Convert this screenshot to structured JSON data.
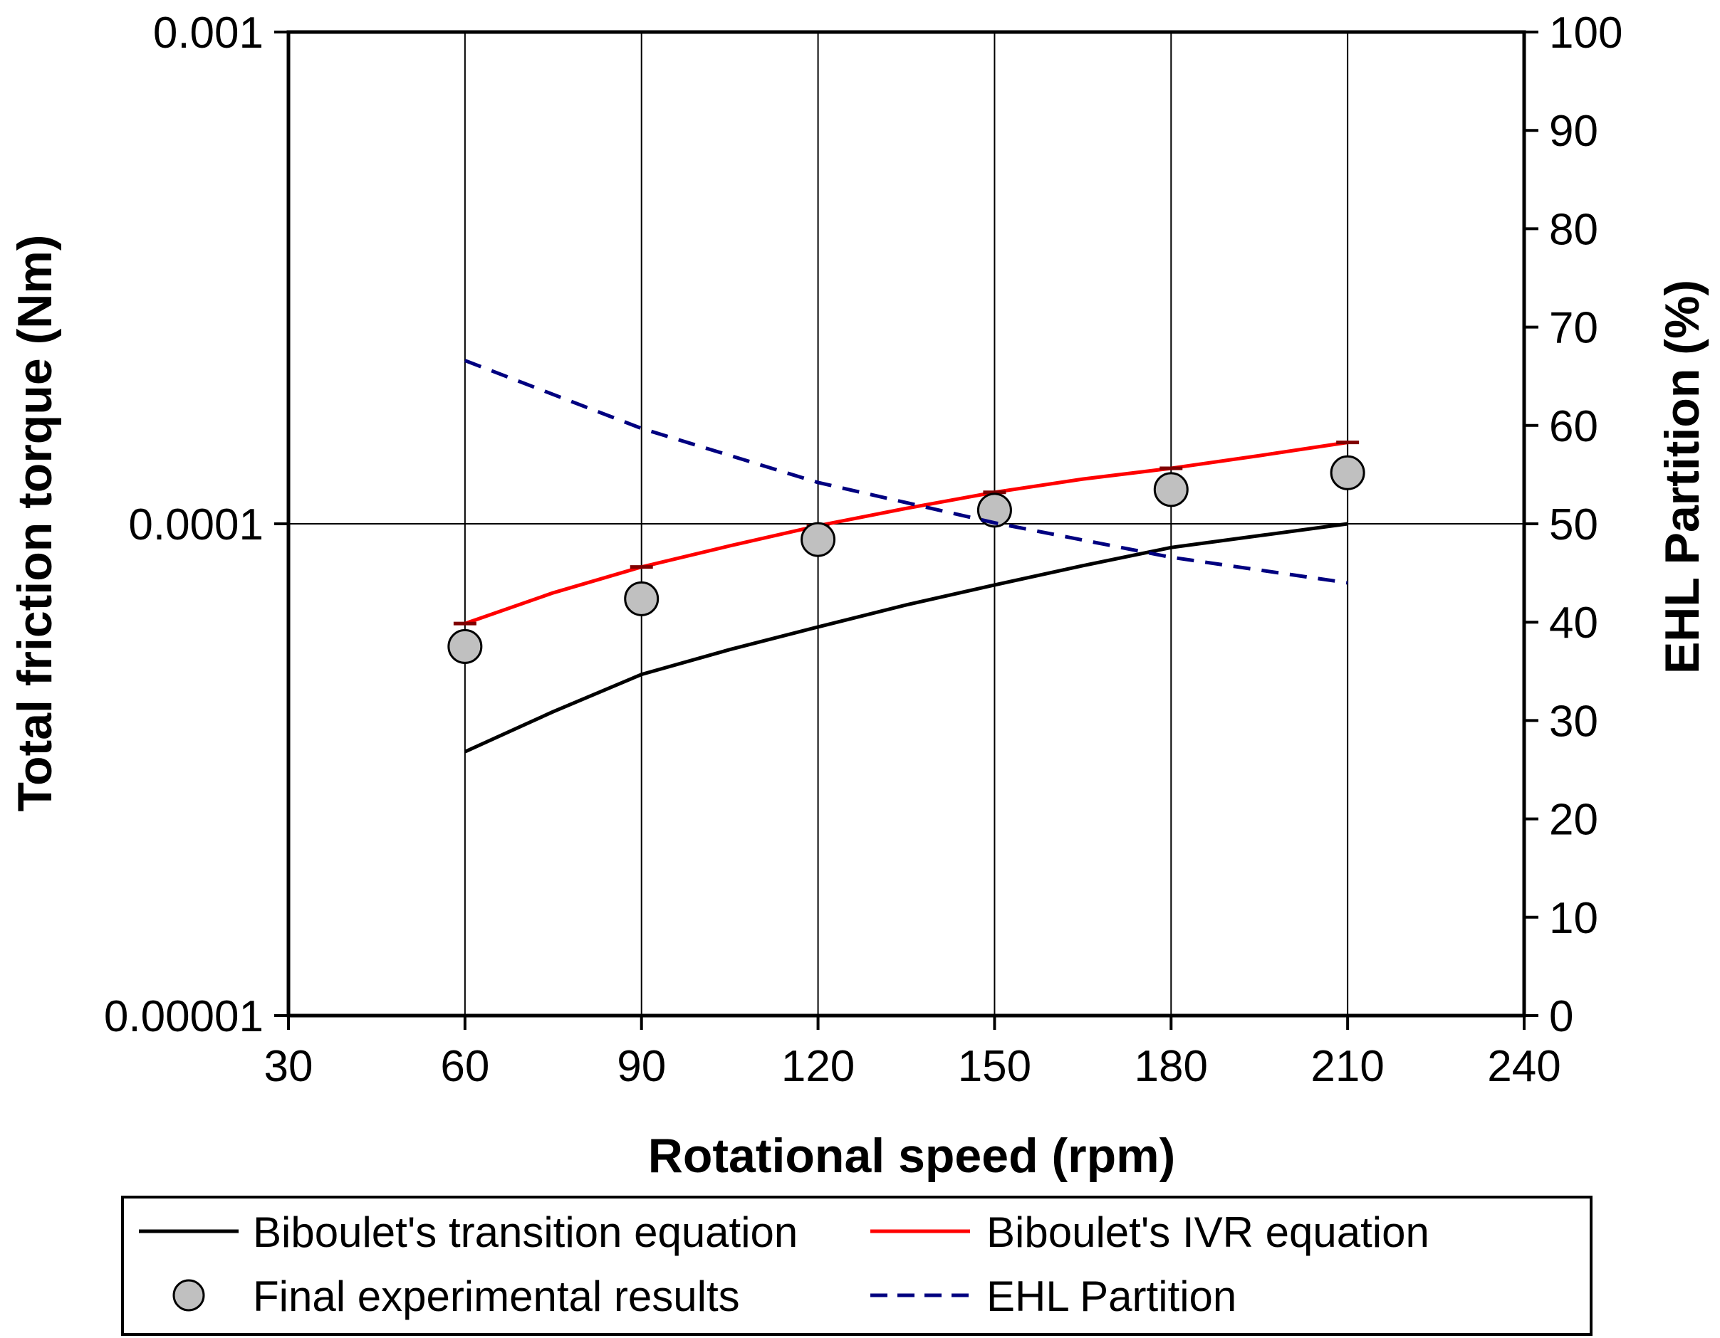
{
  "chart_data": {
    "type": "line",
    "title": "",
    "xlabel": "Rotational speed (rpm)",
    "ylabel": "Total friction torque (Nm)",
    "y2label": "EHL Partition (%)",
    "xlim": [
      30,
      240
    ],
    "x_ticks": [
      30,
      60,
      90,
      120,
      150,
      180,
      210,
      240
    ],
    "x_tick_labels": [
      "30",
      "60",
      "90",
      "120",
      "150",
      "180",
      "210",
      "240"
    ],
    "ylim": [
      1e-05,
      0.001
    ],
    "y_scale": "log",
    "y_ticks": [
      1e-05,
      0.0001,
      0.001
    ],
    "y_tick_labels": [
      "0.00001",
      "0.0001",
      "0.001"
    ],
    "y2lim": [
      0,
      100
    ],
    "y2_ticks": [
      0,
      10,
      20,
      30,
      40,
      50,
      60,
      70,
      80,
      90,
      100
    ],
    "y2_tick_labels": [
      "0",
      "10",
      "20",
      "30",
      "40",
      "50",
      "60",
      "70",
      "80",
      "90",
      "100"
    ],
    "grid": "vertical lines at x ticks, horizontal line at 0.0001",
    "legend_position": "bottom",
    "series": [
      {
        "key": "transition",
        "name": "Biboulet's transition equation",
        "style": "solid",
        "color": "#000000",
        "axis": "left",
        "x": [
          60,
          75,
          90,
          105,
          120,
          135,
          150,
          165,
          180,
          195,
          210
        ],
        "values": [
          3.44e-05,
          4.15e-05,
          4.94e-05,
          5.55e-05,
          6.17e-05,
          6.84e-05,
          7.51e-05,
          8.22e-05,
          8.95e-05,
          9.46e-05,
          0.0001
        ]
      },
      {
        "key": "ivr",
        "name": "Biboulet's IVR equation",
        "style": "solid",
        "color": "#ff0000",
        "axis": "left",
        "x": [
          60,
          75,
          90,
          105,
          120,
          135,
          150,
          165,
          180,
          195,
          210
        ],
        "values": [
          6.27e-05,
          7.24e-05,
          8.17e-05,
          9.02e-05,
          9.91e-05,
          0.0001075,
          0.0001159,
          0.0001233,
          0.0001297,
          0.0001376,
          0.0001464
        ]
      },
      {
        "key": "experimental",
        "name": "Final experimental results",
        "style": "marker",
        "color": "#c0c0c0",
        "axis": "left",
        "x": [
          60,
          90,
          120,
          150,
          180,
          210
        ],
        "values": [
          5.63e-05,
          7.04e-05,
          9.29e-05,
          0.0001066,
          0.0001174,
          0.000127
        ]
      },
      {
        "key": "ehl",
        "name": "EHL Partition",
        "style": "dashed",
        "color": "#000080",
        "axis": "right",
        "x": [
          60,
          90,
          120,
          150,
          180,
          210
        ],
        "values": [
          66.6,
          59.7,
          54.2,
          50.1,
          46.6,
          44.0
        ]
      }
    ]
  }
}
